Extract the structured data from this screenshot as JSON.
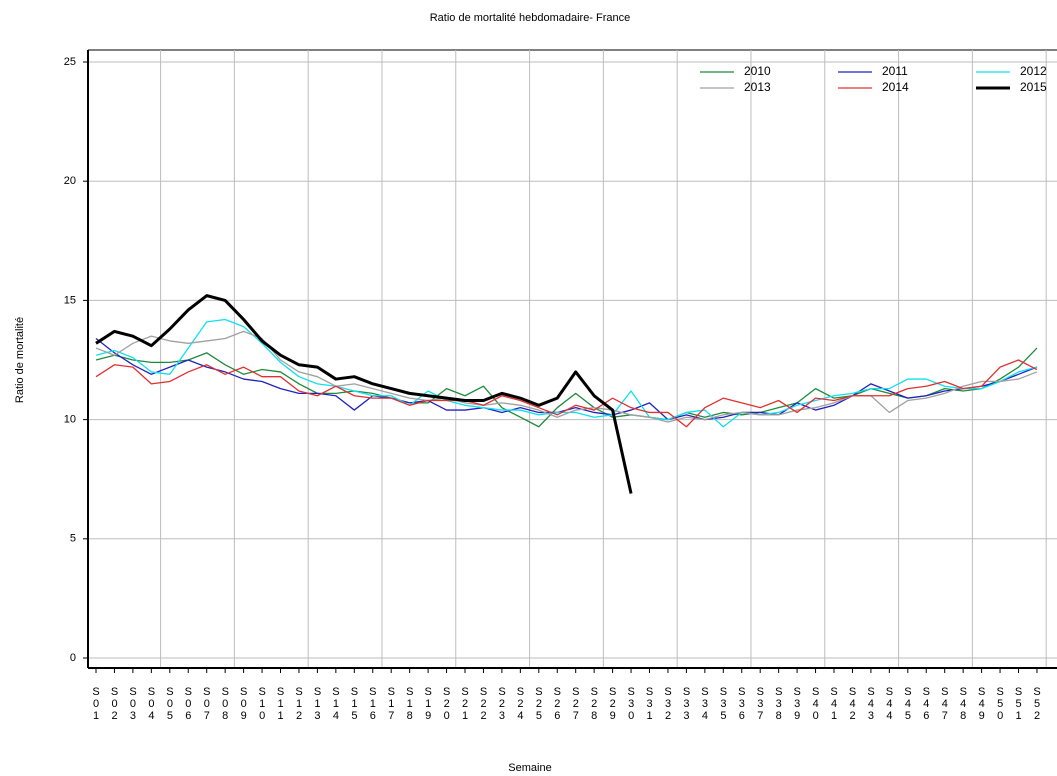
{
  "chart_data": {
    "type": "line",
    "title": "Ratio de mortalité hebdomadaire- France",
    "x_label": "Semaine",
    "y_label": "Ratio de mortalité",
    "categories": [
      "S01",
      "S02",
      "S03",
      "S04",
      "S05",
      "S06",
      "S07",
      "S08",
      "S09",
      "S10",
      "S11",
      "S12",
      "S13",
      "S14",
      "S15",
      "S16",
      "S17",
      "S18",
      "S19",
      "S20",
      "S21",
      "S22",
      "S23",
      "S24",
      "S25",
      "S26",
      "S27",
      "S28",
      "S29",
      "S30",
      "S31",
      "S32",
      "S33",
      "S34",
      "S35",
      "S36",
      "S37",
      "S38",
      "S39",
      "S40",
      "S41",
      "S42",
      "S43",
      "S44",
      "S45",
      "S46",
      "S47",
      "S48",
      "S49",
      "S50",
      "S51",
      "S52"
    ],
    "ylim": [
      0,
      25
    ],
    "yticks": [
      0,
      5,
      10,
      15,
      20,
      25
    ],
    "grid": true,
    "legend": "top-right",
    "series": [
      {
        "name": "2010",
        "color": "#1f8b3a",
        "width": 1.3,
        "values": [
          12.5,
          12.7,
          12.5,
          12.4,
          12.4,
          12.5,
          12.8,
          12.3,
          11.9,
          12.1,
          12.0,
          11.5,
          11.1,
          11.1,
          11.2,
          11.1,
          10.9,
          10.7,
          10.7,
          11.3,
          11.0,
          11.4,
          10.5,
          10.1,
          9.7,
          10.5,
          11.1,
          10.5,
          10.1,
          10.2,
          10.1,
          10.0,
          10.3,
          10.1,
          10.3,
          10.2,
          10.3,
          10.5,
          10.7,
          11.3,
          10.9,
          11.0,
          11.3,
          11.1,
          10.9,
          11.0,
          11.3,
          11.2,
          11.3,
          11.7,
          12.2,
          13.0
        ]
      },
      {
        "name": "2011",
        "color": "#2222c0",
        "width": 1.3,
        "values": [
          13.4,
          12.8,
          12.3,
          11.9,
          12.2,
          12.5,
          12.2,
          12.0,
          11.7,
          11.6,
          11.3,
          11.1,
          11.1,
          11.0,
          10.4,
          11.0,
          10.9,
          10.7,
          10.8,
          10.4,
          10.4,
          10.5,
          10.3,
          10.5,
          10.3,
          10.3,
          10.5,
          10.3,
          10.2,
          10.4,
          10.7,
          10.0,
          10.2,
          10.0,
          10.1,
          10.3,
          10.3,
          10.2,
          10.7,
          10.4,
          10.6,
          11.0,
          11.5,
          11.2,
          10.9,
          11.0,
          11.2,
          11.3,
          11.4,
          11.6,
          11.9,
          12.2
        ]
      },
      {
        "name": "2012",
        "color": "#10e0ee",
        "width": 1.3,
        "values": [
          12.7,
          12.9,
          12.6,
          12.0,
          11.9,
          13.0,
          14.1,
          14.2,
          13.9,
          13.2,
          12.4,
          11.8,
          11.5,
          11.4,
          11.2,
          11.0,
          11.0,
          10.6,
          11.2,
          10.8,
          10.6,
          10.5,
          10.4,
          10.4,
          10.2,
          10.3,
          10.3,
          10.1,
          10.2,
          11.2,
          10.1,
          10.0,
          10.3,
          10.4,
          9.7,
          10.3,
          10.2,
          10.3,
          10.6,
          10.8,
          11.0,
          11.1,
          11.3,
          11.3,
          11.7,
          11.7,
          11.4,
          11.3,
          11.3,
          11.6,
          12.0,
          12.2
        ]
      },
      {
        "name": "2013",
        "color": "#a0a0a0",
        "width": 1.3,
        "values": [
          13.0,
          12.7,
          13.2,
          13.5,
          13.3,
          13.2,
          13.3,
          13.4,
          13.7,
          13.4,
          12.5,
          12.0,
          11.8,
          11.4,
          11.5,
          11.3,
          11.1,
          10.9,
          10.8,
          10.9,
          10.7,
          10.6,
          10.7,
          10.6,
          10.4,
          10.1,
          10.4,
          10.5,
          10.4,
          10.2,
          10.1,
          9.9,
          10.1,
          10.0,
          10.2,
          10.3,
          10.2,
          10.2,
          10.4,
          10.5,
          10.7,
          11.0,
          11.0,
          10.3,
          10.8,
          10.9,
          11.1,
          11.4,
          11.6,
          11.6,
          11.7,
          12.0
        ]
      },
      {
        "name": "2014",
        "color": "#e03030",
        "width": 1.3,
        "values": [
          11.8,
          12.3,
          12.2,
          11.5,
          11.6,
          12.0,
          12.3,
          11.9,
          12.2,
          11.8,
          11.8,
          11.2,
          11.0,
          11.4,
          11.0,
          10.9,
          10.9,
          10.6,
          10.8,
          10.8,
          10.8,
          10.6,
          11.0,
          10.8,
          10.5,
          10.2,
          10.6,
          10.4,
          10.9,
          10.5,
          10.3,
          10.3,
          9.7,
          10.5,
          10.9,
          10.7,
          10.5,
          10.8,
          10.3,
          10.9,
          10.8,
          11.0,
          11.0,
          11.0,
          11.3,
          11.4,
          11.6,
          11.3,
          11.4,
          12.2,
          12.5,
          12.1
        ]
      },
      {
        "name": "2015",
        "color": "#000000",
        "width": 3,
        "values": [
          13.2,
          13.7,
          13.5,
          13.1,
          13.8,
          14.6,
          15.2,
          15.0,
          14.2,
          13.3,
          12.7,
          12.3,
          12.2,
          11.7,
          11.8,
          11.5,
          11.3,
          11.1,
          11.0,
          10.9,
          10.8,
          10.8,
          11.1,
          10.9,
          10.6,
          10.9,
          12.0,
          11.0,
          10.4,
          6.9,
          null,
          null,
          null,
          null,
          null,
          null,
          null,
          null,
          null,
          null,
          null,
          null,
          null,
          null,
          null,
          null,
          null,
          null,
          null,
          null,
          null,
          null
        ]
      }
    ]
  }
}
